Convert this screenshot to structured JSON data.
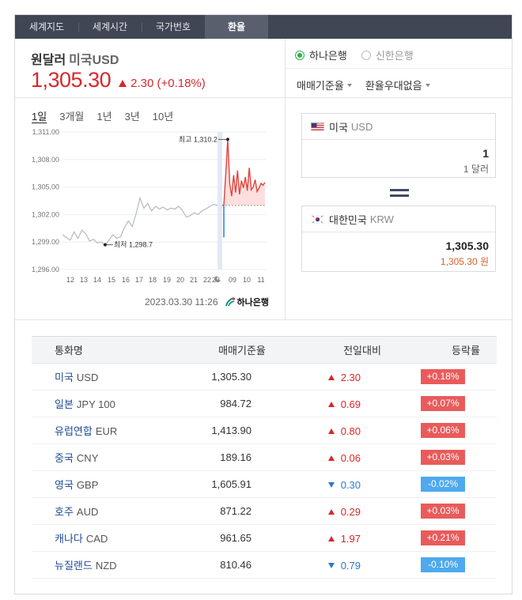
{
  "tabs": [
    {
      "label": "세계지도"
    },
    {
      "label": "세계시간"
    },
    {
      "label": "국가번호"
    },
    {
      "label": "환율",
      "active": true
    }
  ],
  "header": {
    "title": "원달러",
    "currency": "미국USD",
    "price": "1,305.30",
    "change": "2.30 (+0.18%)"
  },
  "banks": [
    {
      "label": "하나은행",
      "selected": true
    },
    {
      "label": "신한은행",
      "selected": false
    }
  ],
  "selects": [
    "매매기준율",
    "환율우대없음"
  ],
  "periods": [
    "1일",
    "3개월",
    "1년",
    "3년",
    "10년"
  ],
  "chart_data": {
    "type": "line",
    "y_ticks": [
      "1,311.00",
      "1,308.00",
      "1,305.00",
      "1,302.00",
      "1,299.00",
      "1,296.00"
    ],
    "ylim": [
      1296,
      1311
    ],
    "x_ticks": [
      "12",
      "13",
      "14",
      "15",
      "16",
      "17",
      "18",
      "19",
      "20",
      "21",
      "22",
      "23",
      "09",
      "10",
      "11"
    ],
    "max_label": "최고 1,310.2",
    "min_label": "최저 1,298.7",
    "reference_rate": 1303.0,
    "prev_day_series": [
      1299.8,
      1299.5,
      1299.2,
      1300.1,
      1299.4,
      1300.3,
      1299.9,
      1299.1,
      1299.3,
      1298.9,
      1299.0,
      1298.7,
      1299.2,
      1299.8,
      1299.4,
      1299.6,
      1300.6,
      1301.3,
      1300.7,
      1302.1,
      1303.8,
      1302.7,
      1303.2,
      1302.4,
      1302.9,
      1302.6,
      1302.8,
      1302.5,
      1302.7,
      1302.6,
      1302.9,
      1302.4,
      1301.7,
      1301.9,
      1302.2,
      1302.0,
      1302.4,
      1302.6,
      1302.9,
      1303.1,
      1303.0
    ],
    "today_series": [
      1303.0,
      1306.5,
      1310.2,
      1305.4,
      1304.0,
      1306.3,
      1304.4,
      1306.8,
      1304.2,
      1305.7,
      1304.9,
      1306.1,
      1304.6,
      1307.1,
      1304.7,
      1305.0,
      1305.8,
      1304.5,
      1304.9,
      1305.4,
      1305.2,
      1305.5
    ],
    "today_open_drop": 1299.5,
    "line_colors": {
      "prev": "#b4b9c8",
      "today": "#e0443e",
      "open": "#2b7ed8"
    },
    "timestamp": "2023.03.30 11:26",
    "source": "하나은행"
  },
  "converter": {
    "from": {
      "country": "미국",
      "code": "USD",
      "value": "1",
      "sub": "1 달러"
    },
    "to": {
      "country": "대한민국",
      "code": "KRW",
      "value": "1,305.30",
      "sub": "1,305.30 원"
    }
  },
  "table": {
    "headers": [
      "통화명",
      "매매기준율",
      "전일대비",
      "등락률"
    ],
    "rows": [
      {
        "name": "미국",
        "code": "USD",
        "rate": "1,305.30",
        "change": "2.30",
        "dir": "up",
        "pct": "+0.18%"
      },
      {
        "name": "일본",
        "code": "JPY 100",
        "rate": "984.72",
        "change": "0.69",
        "dir": "up",
        "pct": "+0.07%"
      },
      {
        "name": "유럽연합",
        "code": "EUR",
        "rate": "1,413.90",
        "change": "0.80",
        "dir": "up",
        "pct": "+0.06%"
      },
      {
        "name": "중국",
        "code": "CNY",
        "rate": "189.16",
        "change": "0.06",
        "dir": "up",
        "pct": "+0.03%"
      },
      {
        "name": "영국",
        "code": "GBP",
        "rate": "1,605.91",
        "change": "0.30",
        "dir": "down",
        "pct": "-0.02%"
      },
      {
        "name": "호주",
        "code": "AUD",
        "rate": "871.22",
        "change": "0.29",
        "dir": "up",
        "pct": "+0.03%"
      },
      {
        "name": "캐나다",
        "code": "CAD",
        "rate": "961.65",
        "change": "1.97",
        "dir": "up",
        "pct": "+0.21%"
      },
      {
        "name": "뉴질랜드",
        "code": "NZD",
        "rate": "810.46",
        "change": "0.79",
        "dir": "down",
        "pct": "-0.10%"
      }
    ]
  }
}
